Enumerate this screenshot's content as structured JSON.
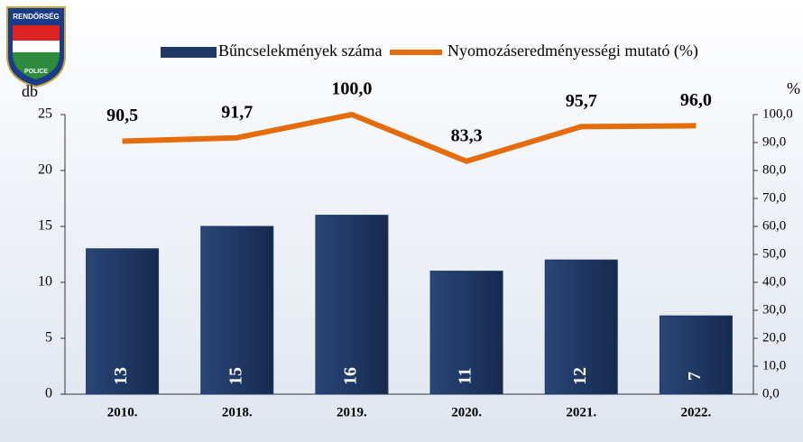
{
  "logo": {
    "top": "RENDŐRSÉG",
    "bottom": "POLICE"
  },
  "chart_data": {
    "type": "bar",
    "categories": [
      "2010.",
      "2018.",
      "2019.",
      "2020.",
      "2021.",
      "2022."
    ],
    "series": [
      {
        "name": "Bűncselekmények száma",
        "type": "bar",
        "color": "#1f3864",
        "values": [
          13,
          15,
          16,
          11,
          12,
          7
        ]
      },
      {
        "name": "Nyomozáseredményességi mutató (%)",
        "type": "line",
        "axis": "y2",
        "color": "#e46c0a",
        "values": [
          90.5,
          91.7,
          100.0,
          83.3,
          95.7,
          96.0
        ],
        "value_labels": [
          "90,5",
          "91,7",
          "100,0",
          "83,3",
          "95,7",
          "96,0"
        ]
      }
    ],
    "ylabel": "db",
    "y2label": "%",
    "ylim": [
      0,
      25
    ],
    "yticks": [
      0,
      5,
      10,
      15,
      20,
      25
    ],
    "y2lim": [
      0,
      100
    ],
    "y2ticks": [
      {
        "value": 0,
        "label": "0,0"
      },
      {
        "value": 10,
        "label": "10,0"
      },
      {
        "value": 20,
        "label": "20,0"
      },
      {
        "value": 30,
        "label": "30,0"
      },
      {
        "value": 40,
        "label": "40,0"
      },
      {
        "value": 50,
        "label": "50,0"
      },
      {
        "value": 60,
        "label": "60,0"
      },
      {
        "value": 70,
        "label": "70,0"
      },
      {
        "value": 80,
        "label": "80,0"
      },
      {
        "value": 90,
        "label": "90,0"
      },
      {
        "value": 100,
        "label": "100,0"
      }
    ],
    "legend": "top"
  }
}
